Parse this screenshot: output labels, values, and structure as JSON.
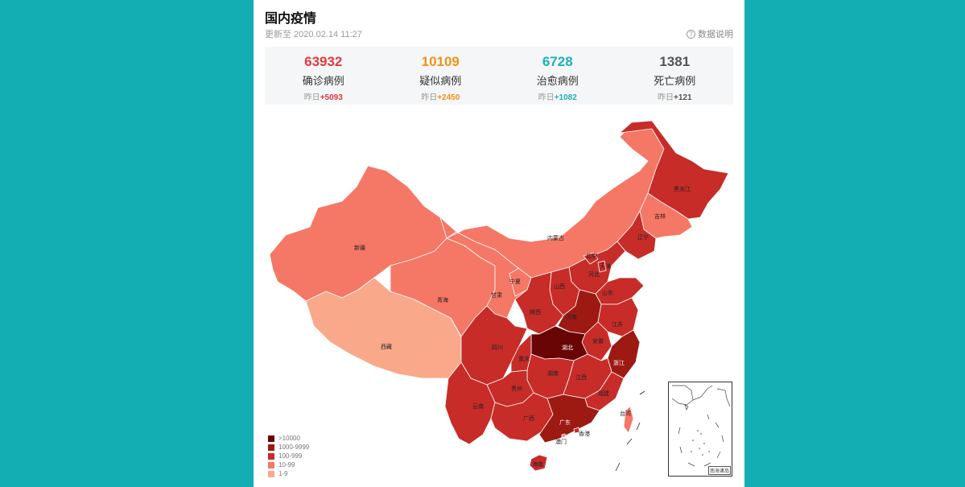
{
  "header": {
    "title": "国内疫情",
    "updated": "更新至 2020.02.14 11:27",
    "explain": "数据说明"
  },
  "stats": [
    {
      "value": "63932",
      "label": "确诊病例",
      "delta_prefix": "昨日",
      "delta": "+5093",
      "color": "#e0393e"
    },
    {
      "value": "10109",
      "label": "疑似病例",
      "delta_prefix": "昨日",
      "delta": "+2450",
      "color": "#ec9217"
    },
    {
      "value": "6728",
      "label": "治愈病例",
      "delta_prefix": "昨日",
      "delta": "+1082",
      "color": "#1cb1b7"
    },
    {
      "value": "1381",
      "label": "死亡病例",
      "delta_prefix": "昨日",
      "delta": "+121",
      "color": "#555555"
    }
  ],
  "colors": {
    "lvl1": "#f9a98a",
    "lvl2": "#f57766",
    "lvl3": "#c72c28",
    "lvl4": "#9d1a13",
    "lvl5": "#6a0505"
  },
  "legend": [
    {
      "label": ">10000",
      "color": "#6a0505"
    },
    {
      "label": "1000-9999",
      "color": "#9d1a13"
    },
    {
      "label": "100-999",
      "color": "#c72c28"
    },
    {
      "label": "10-99",
      "color": "#f57766"
    },
    {
      "label": "1-9",
      "color": "#f9a98a"
    }
  ],
  "provinces": {
    "xinjiang": "新疆",
    "xizang": "西藏",
    "qinghai": "青海",
    "gansu": "甘肃",
    "ningxia": "宁夏",
    "neimenggu": "内蒙古",
    "heilongjiang": "黑龙江",
    "jilin": "吉林",
    "liaoning": "辽宁",
    "beijing": "北京",
    "tianjin": "天津",
    "hebei": "河北",
    "shanxi": "山西",
    "shandong": "山东",
    "shaanxi": "陕西",
    "henan": "河南",
    "jiangsu": "江苏",
    "anhui": "安徽",
    "hubei": "湖北",
    "sichuan": "四川",
    "chongqing": "重庆",
    "zhejiang": "浙江",
    "hunan": "湖南",
    "jiangxi": "江西",
    "guizhou": "贵州",
    "yunnan": "云南",
    "guangxi": "广西",
    "guangdong": "广东",
    "fujian": "福建",
    "taiwan": "台湾",
    "hongkong": "香港",
    "macao": "澳门",
    "hainan": "海南"
  },
  "inset_caption": "南海诸岛"
}
